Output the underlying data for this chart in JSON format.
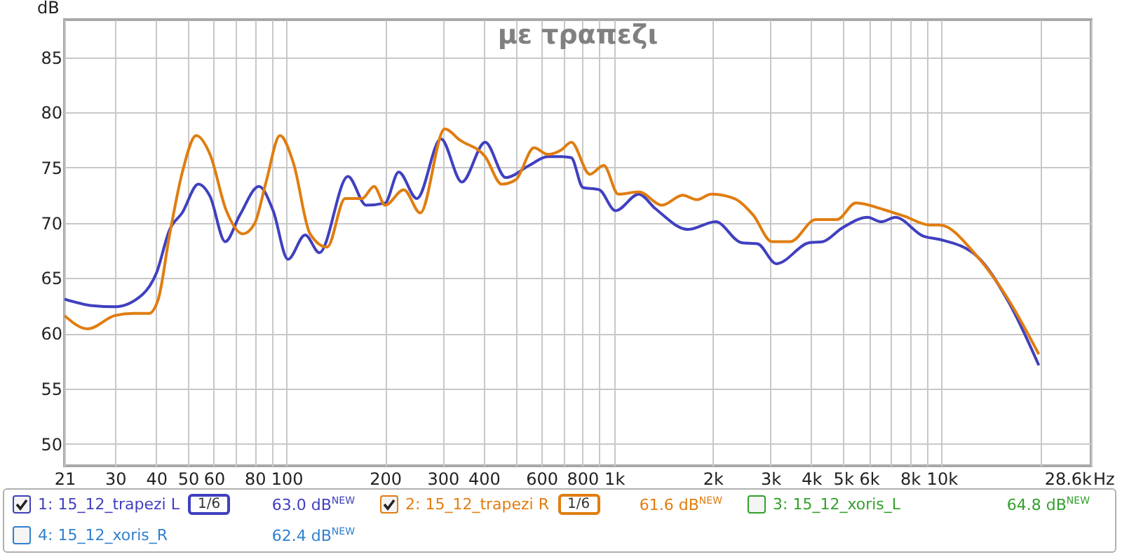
{
  "chart_data": {
    "type": "line",
    "title": "με τραπεζι",
    "ylabel": "dB",
    "xlim": [
      21,
      28600
    ],
    "ylim": [
      48,
      88.4
    ],
    "log": "x",
    "grid": true,
    "legend": "bottom",
    "line_style": "solid",
    "marker": "none",
    "xticks": [
      21,
      30,
      40,
      50,
      60,
      {
        "value": 70,
        "label": null
      },
      80,
      {
        "value": 90,
        "label": null
      },
      100,
      200,
      300,
      400,
      {
        "value": 500,
        "label": null
      },
      600,
      {
        "value": 700,
        "label": null
      },
      800,
      {
        "value": 900,
        "label": null
      },
      {
        "value": 1000,
        "label": "1k"
      },
      {
        "value": 2000,
        "label": "2k"
      },
      {
        "value": 3000,
        "label": "3k"
      },
      {
        "value": 4000,
        "label": "4k"
      },
      {
        "value": 5000,
        "label": "5k"
      },
      {
        "value": 6000,
        "label": "6k"
      },
      {
        "value": 7000,
        "label": null
      },
      {
        "value": 8000,
        "label": "8k"
      },
      {
        "value": 9000,
        "label": null
      },
      {
        "value": 10000,
        "label": "10k"
      },
      {
        "value": 20000,
        "label": null
      },
      {
        "value": 28600,
        "label": "28.6k"
      }
    ],
    "xlabel": "Hz",
    "yticks": [
      50,
      55,
      60,
      65,
      70,
      75,
      80,
      85
    ],
    "annotations": [
      "63.0 dB$^{NEW}$",
      "61.6 dB$^{NEW}$",
      "64.8 dB$^{NEW}$",
      "62.4 dB$^{NEW}$",
      "1/6",
      "1/6"
    ],
    "series": [
      {
        "name": "1: 15_12_trapezi L",
        "color": "#4040c0",
        "x": [
          21,
          25.6,
          29.9,
          36.3,
          40,
          44,
          48,
          53.8,
          58.4,
          65,
          72,
          82.4,
          91,
          101,
          114,
          126,
          154,
          175,
          200,
          220,
          250,
          296,
          343,
          404,
          467,
          551,
          627,
          693,
          740,
          803,
          900,
          1010,
          1190,
          1335,
          1680,
          2040,
          2450,
          2740,
          3130,
          3940,
          4340,
          4950,
          5940,
          6540,
          7220,
          8790,
          9850,
          12800,
          16100,
          19800
        ],
        "values": [
          63.1,
          62.5,
          62.4,
          63.5,
          65.4,
          69.4,
          70.9,
          73.5,
          72.4,
          68.3,
          70.7,
          73.3,
          71.1,
          66.7,
          68.9,
          67.3,
          74.2,
          71.6,
          71.8,
          74.6,
          72.2,
          77.6,
          73.7,
          77.3,
          74.1,
          75.2,
          76.0,
          76.0,
          75.9,
          73.2,
          73.0,
          71.1,
          72.6,
          71.3,
          69.4,
          70.1,
          68.2,
          68.1,
          66.3,
          68.2,
          68.3,
          69.5,
          70.5,
          70.1,
          70.5,
          68.8,
          68.5,
          67.0,
          62.7,
          57.1
        ]
      },
      {
        "name": "2: 15_12_trapezi R",
        "color": "#e07d10",
        "x": [
          21,
          24.7,
          29.9,
          34,
          38,
          40.6,
          44,
          48,
          53,
          58.4,
          65.5,
          73.5,
          79.8,
          86.6,
          95.5,
          105,
          118,
          133,
          151,
          170,
          185,
          200,
          228,
          256,
          304,
          338,
          404,
          454,
          501,
          570,
          627,
          690,
          740,
          843,
          930,
          1030,
          1190,
          1400,
          1620,
          1790,
          1980,
          2330,
          2660,
          3030,
          3450,
          4130,
          4790,
          5470,
          6650,
          7690,
          9220,
          9850,
          12800,
          16100,
          19800
        ],
        "values": [
          61.6,
          60.4,
          61.6,
          61.8,
          61.8,
          63.1,
          69.0,
          74.5,
          77.9,
          76.2,
          71.1,
          69.0,
          69.9,
          73.7,
          77.9,
          75.4,
          69.0,
          67.8,
          72.2,
          72.2,
          73.3,
          71.6,
          73.0,
          70.9,
          78.5,
          77.5,
          76.0,
          73.5,
          73.9,
          76.8,
          76.2,
          76.6,
          77.3,
          74.4,
          75.2,
          72.6,
          72.8,
          71.6,
          72.5,
          72.1,
          72.6,
          72.2,
          70.7,
          68.3,
          68.3,
          70.3,
          70.3,
          71.8,
          71.2,
          70.6,
          69.8,
          69.8,
          67.0,
          62.9,
          58.1
        ]
      },
      {
        "name": "3: 15_12_xoris_L",
        "color": "#33a02c"
      },
      {
        "name": "4: 15_12_xoris_R",
        "color": "#3080d0"
      }
    ]
  }
}
